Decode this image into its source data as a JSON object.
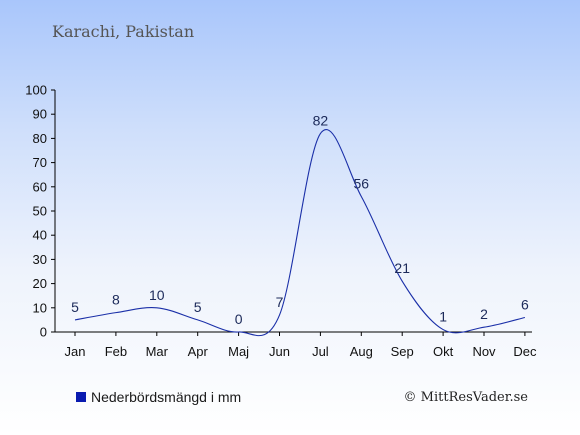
{
  "header": {
    "place": "Karachi, Pakistan"
  },
  "legend": {
    "label": "Nederbördsmängd i mm",
    "color": "#0a1bb0"
  },
  "credit": "© MittResVader.se",
  "chart_data": {
    "type": "line",
    "categories": [
      "Jan",
      "Feb",
      "Mar",
      "Apr",
      "Maj",
      "Jun",
      "Jul",
      "Aug",
      "Sep",
      "Okt",
      "Nov",
      "Dec"
    ],
    "values": [
      5,
      8,
      10,
      5,
      0,
      7,
      82,
      56,
      21,
      1,
      2,
      6
    ],
    "data_labels": [
      "5",
      "8",
      "10",
      "5",
      "0",
      "7",
      "82",
      "56",
      "21",
      "1",
      "2",
      "6"
    ],
    "ylim": [
      0,
      100
    ],
    "yticks": [
      0,
      10,
      20,
      30,
      40,
      50,
      60,
      70,
      80,
      90,
      100
    ],
    "ytick_labels": [
      "0",
      "10",
      "20",
      "30",
      "40",
      "50",
      "60",
      "70",
      "80",
      "90",
      "100"
    ],
    "title": "",
    "xlabel": "",
    "ylabel": "",
    "grid": false,
    "line_color": "#1a2fa8",
    "legend_position": "bottom-left"
  }
}
